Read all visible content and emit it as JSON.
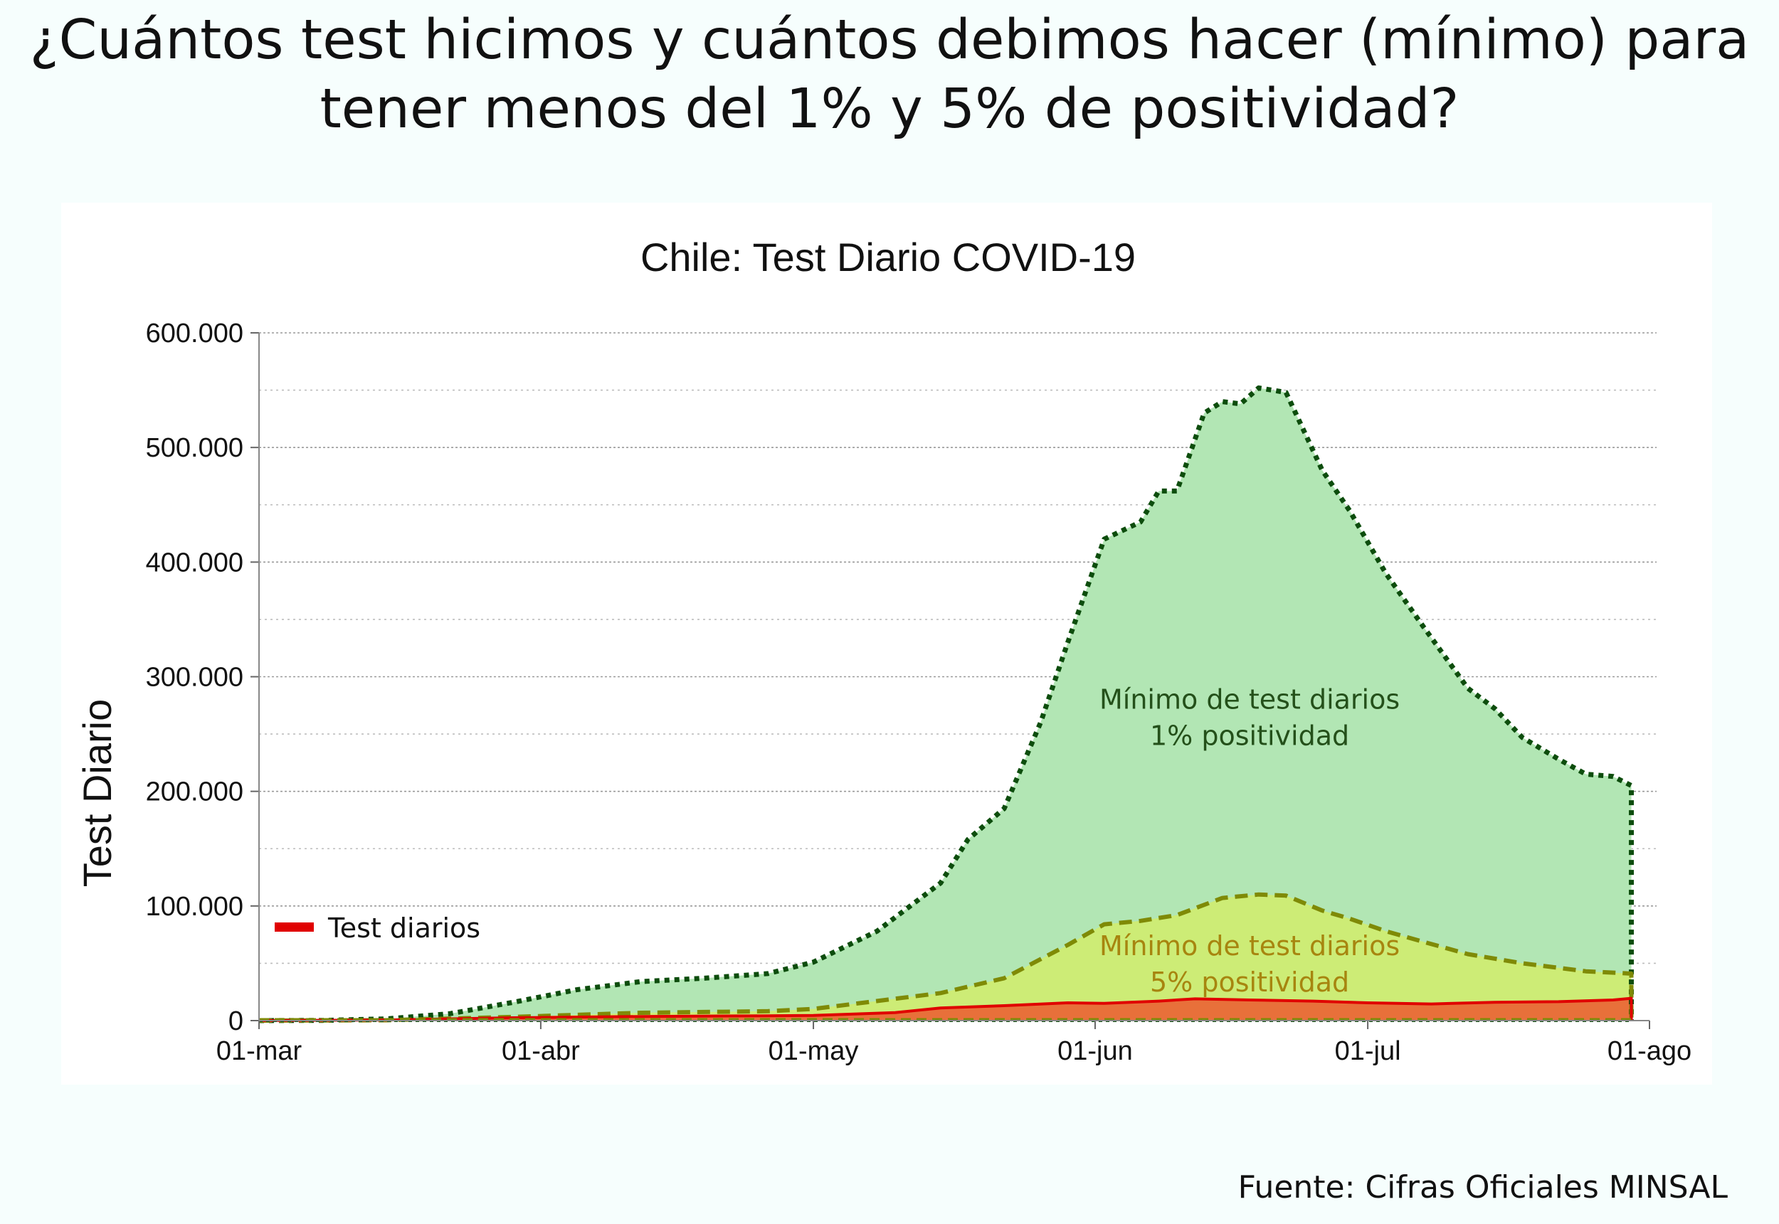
{
  "headline": {
    "line1": "¿Cuántos test hicimos y cuántos debimos hacer (mínimo) para",
    "line2": "tener menos del 1% y 5% de positividad?"
  },
  "source": "Fuente: Cifras Oficiales MINSAL",
  "colors": {
    "background": "#f6fefd",
    "fill_1pct": "#b2e6b4",
    "line_1pct": "#0d4d0d",
    "fill_5pct": "#cdec76",
    "line_5pct": "#7f8a06",
    "fill_tests": "#e8703a",
    "line_tests": "#e00000",
    "annotation_1pct": "#24501a",
    "annotation_5pct": "#a7850f"
  },
  "chart_data": {
    "type": "area",
    "title": "Chile: Test Diario COVID-19",
    "ylabel": "Test Diario",
    "xlabel": "",
    "ylim": [
      0,
      600000
    ],
    "xlim": [
      "2020-03-01",
      "2020-08-01"
    ],
    "x_tick_labels": [
      "01-mar",
      "01-abr",
      "01-may",
      "01-jun",
      "01-jul",
      "01-ago"
    ],
    "y_tick_labels": [
      "0",
      "100.000",
      "200.000",
      "300.000",
      "400.000",
      "500.000",
      "600.000"
    ],
    "grid": true,
    "legend": {
      "position": "lower-left",
      "entries": [
        "Test diarios"
      ]
    },
    "annotations": [
      {
        "lines": [
          "Mínimo de test diarios",
          "1% positividad"
        ],
        "series": "Mínimo 1% positividad"
      },
      {
        "lines": [
          "Mínimo de test diarios",
          "5% positividad"
        ],
        "series": "Mínimo 5% positividad"
      }
    ],
    "series": [
      {
        "name": "Mínimo 1% positividad",
        "style": "dotted",
        "points": [
          [
            "2020-03-01",
            0
          ],
          [
            "2020-03-08",
            200
          ],
          [
            "2020-03-15",
            1500
          ],
          [
            "2020-03-22",
            6000
          ],
          [
            "2020-03-29",
            16000
          ],
          [
            "2020-04-05",
            27000
          ],
          [
            "2020-04-12",
            34000
          ],
          [
            "2020-04-19",
            37000
          ],
          [
            "2020-04-26",
            41000
          ],
          [
            "2020-05-01",
            51000
          ],
          [
            "2020-05-08",
            78000
          ],
          [
            "2020-05-15",
            120000
          ],
          [
            "2020-05-18",
            158000
          ],
          [
            "2020-05-22",
            185000
          ],
          [
            "2020-05-26",
            260000
          ],
          [
            "2020-05-29",
            330000
          ],
          [
            "2020-06-02",
            420000
          ],
          [
            "2020-06-06",
            435000
          ],
          [
            "2020-06-08",
            462000
          ],
          [
            "2020-06-10",
            462000
          ],
          [
            "2020-06-13",
            530000
          ],
          [
            "2020-06-15",
            540000
          ],
          [
            "2020-06-17",
            538000
          ],
          [
            "2020-06-19",
            552000
          ],
          [
            "2020-06-22",
            548000
          ],
          [
            "2020-06-26",
            480000
          ],
          [
            "2020-06-29",
            445000
          ],
          [
            "2020-07-03",
            390000
          ],
          [
            "2020-07-07",
            345000
          ],
          [
            "2020-07-12",
            290000
          ],
          [
            "2020-07-15",
            272000
          ],
          [
            "2020-07-18",
            247000
          ],
          [
            "2020-07-22",
            228000
          ],
          [
            "2020-07-25",
            215000
          ],
          [
            "2020-07-28",
            213000
          ],
          [
            "2020-07-30",
            205000
          ]
        ]
      },
      {
        "name": "Mínimo 5% positividad",
        "style": "dashed",
        "points": [
          [
            "2020-03-01",
            0
          ],
          [
            "2020-03-15",
            300
          ],
          [
            "2020-03-29",
            3200
          ],
          [
            "2020-04-12",
            6800
          ],
          [
            "2020-04-26",
            8200
          ],
          [
            "2020-05-01",
            10200
          ],
          [
            "2020-05-15",
            24000
          ],
          [
            "2020-05-22",
            37000
          ],
          [
            "2020-05-29",
            66000
          ],
          [
            "2020-06-02",
            84000
          ],
          [
            "2020-06-06",
            87000
          ],
          [
            "2020-06-10",
            92000
          ],
          [
            "2020-06-15",
            107000
          ],
          [
            "2020-06-19",
            110000
          ],
          [
            "2020-06-22",
            109000
          ],
          [
            "2020-06-26",
            96000
          ],
          [
            "2020-06-29",
            89000
          ],
          [
            "2020-07-03",
            78000
          ],
          [
            "2020-07-07",
            69000
          ],
          [
            "2020-07-12",
            58000
          ],
          [
            "2020-07-18",
            50000
          ],
          [
            "2020-07-25",
            43000
          ],
          [
            "2020-07-30",
            41000
          ]
        ]
      },
      {
        "name": "Test diarios",
        "style": "solid",
        "points": [
          [
            "2020-03-01",
            0
          ],
          [
            "2020-03-15",
            500
          ],
          [
            "2020-03-29",
            2500
          ],
          [
            "2020-04-12",
            3600
          ],
          [
            "2020-04-26",
            4200
          ],
          [
            "2020-05-01",
            4500
          ],
          [
            "2020-05-10",
            7000
          ],
          [
            "2020-05-15",
            11000
          ],
          [
            "2020-05-22",
            13000
          ],
          [
            "2020-05-29",
            15500
          ],
          [
            "2020-06-02",
            15000
          ],
          [
            "2020-06-08",
            17000
          ],
          [
            "2020-06-12",
            19000
          ],
          [
            "2020-06-18",
            18000
          ],
          [
            "2020-06-25",
            17000
          ],
          [
            "2020-07-01",
            15500
          ],
          [
            "2020-07-08",
            14500
          ],
          [
            "2020-07-15",
            16000
          ],
          [
            "2020-07-22",
            16500
          ],
          [
            "2020-07-28",
            18000
          ],
          [
            "2020-07-30",
            19500
          ]
        ]
      }
    ]
  }
}
